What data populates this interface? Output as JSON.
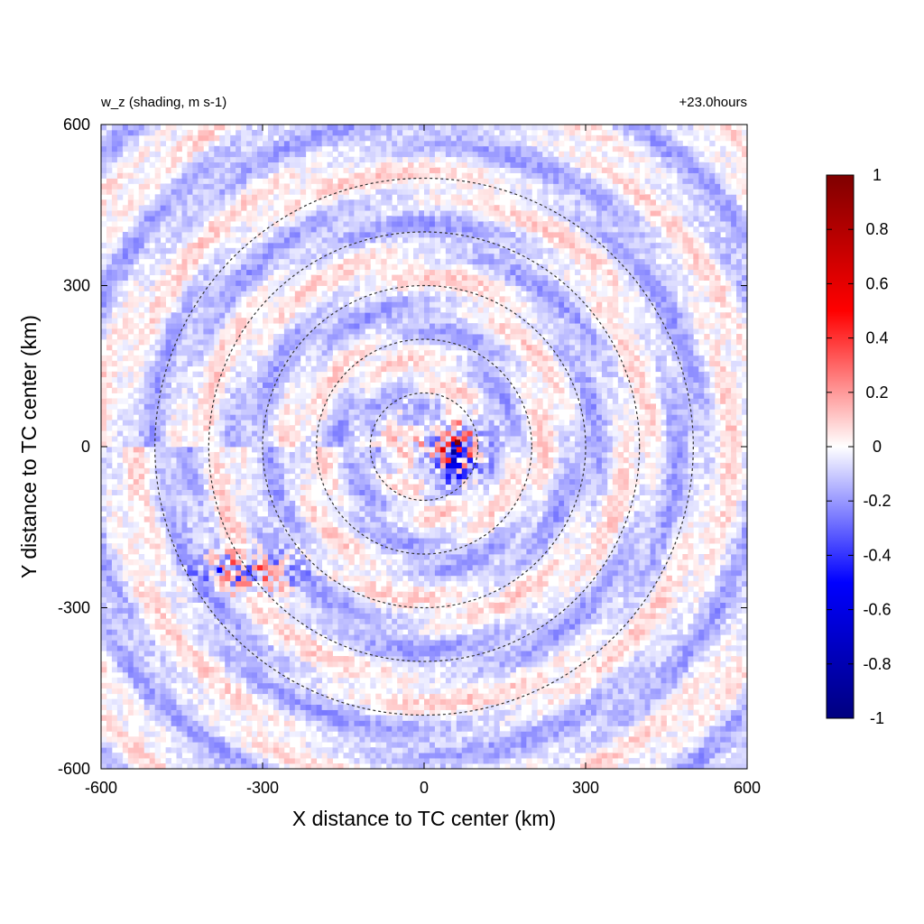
{
  "chart_data": {
    "type": "heatmap",
    "title_left": "w_z (shading, m s-1)",
    "title_right": "+23.0hours",
    "xlabel": "X distance to TC center (km)",
    "ylabel": "Y distance to TC center (km)",
    "xlim": [
      -600,
      600
    ],
    "ylim": [
      -600,
      600
    ],
    "xticks": [
      -600,
      -300,
      0,
      300,
      600
    ],
    "yticks": [
      -600,
      -300,
      0,
      300,
      600
    ],
    "xtick_labels": [
      "-600",
      "-300",
      "0",
      "300",
      "600"
    ],
    "ytick_labels": [
      "-600",
      "-300",
      "0",
      "300",
      "600"
    ],
    "colorbar": {
      "range": [
        -1,
        1
      ],
      "ticks": [
        1,
        0.8,
        0.6,
        0.4,
        0.2,
        0,
        -0.2,
        -0.4,
        -0.6,
        -0.8,
        -1
      ],
      "tick_labels": [
        "1",
        "0.8",
        "0.6",
        "0.4",
        "0.2",
        "0",
        "-0.2",
        "-0.4",
        "-0.6",
        "-0.8",
        "-1"
      ],
      "colors": [
        "#00007f",
        "#0000ff",
        "#ffffff",
        "#ff0000",
        "#7f0000"
      ]
    },
    "range_circles_km": [
      100,
      200,
      300,
      400,
      500
    ],
    "circle_style": "dashed",
    "grid": false,
    "features": {
      "peak_updraft": {
        "x": 62,
        "y": 8,
        "value": 1.0
      },
      "peak_downdraft": {
        "x": 55,
        "y": -10,
        "value": -0.9
      },
      "secondary_band": {
        "x": -380,
        "y": -230,
        "value": -0.5
      }
    }
  }
}
